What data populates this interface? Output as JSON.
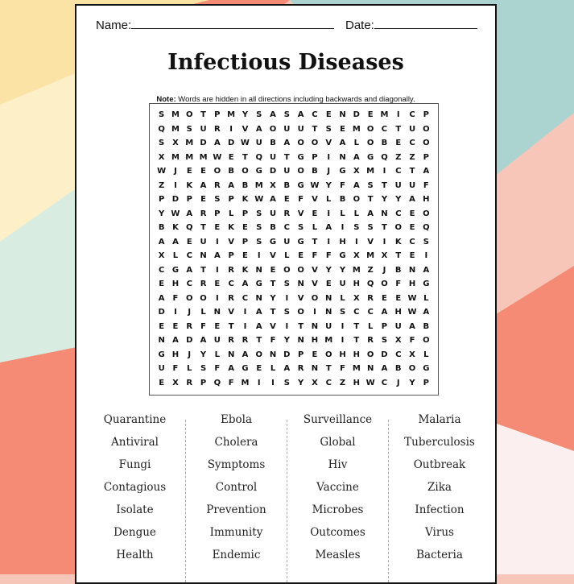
{
  "background_colors": [
    "#fbe3a6",
    "#f58b75",
    "#abd3d0",
    "#f7c6b9",
    "#d8ece2",
    "#fbeff0"
  ],
  "header": {
    "name_label": "Name:",
    "date_label": "Date:"
  },
  "title": "Infectious Diseases",
  "note": {
    "bold": "Note:",
    "text": " Words are hidden in all directions including backwards and diagonally."
  },
  "grid_rows": [
    "SMOTPMYSASACENDEMICP",
    "QMSURIVAOUUTSEMOCTUO",
    "SXMDADWUBAOOVALOBECO",
    "XMMMWETQUTGPINAGQZZP",
    "WJEEOBOGDUOBJGXMICTA",
    "ZIKARABMXBGWYFASTUUF",
    "PDPESPKWAEFVLBOTYYAH",
    "YWARPLPSURVEILLANCEO",
    "BKQTEKESBCSLAISSTOEQ",
    "AAEUIVPSGUGTIHIVIKCS",
    "XLCNAPEIVLEFFGXMXTEI",
    "CGATIRKNEOOVYYMZJBNA",
    "EHCRECAGTSNVEUHQOFHG",
    "AFOOIRCNYIVONLXREEWL",
    "DIJLNVIATSOINSCCAHWA",
    "EERFETIAVITNUITLPUAB",
    "NADAURRTFYNHMITRSXFO",
    "GHJYLNAONDPEOHHODCXL",
    "UFLSFAGELARNTFMNABOG",
    "EXRPQFMIISYXCZHWCJYP"
  ],
  "word_columns": [
    [
      "Quarantine",
      "Antiviral",
      "Fungi",
      "Contagious",
      "Isolate",
      "Dengue",
      "Health"
    ],
    [
      "Ebola",
      "Cholera",
      "Symptoms",
      "Control",
      "Prevention",
      "Immunity",
      "Endemic"
    ],
    [
      "Surveillance",
      "Global",
      "Hiv",
      "Vaccine",
      "Microbes",
      "Outcomes",
      "Measles"
    ],
    [
      "Malaria",
      "Tuberculosis",
      "Outbreak",
      "Zika",
      "Infection",
      "Virus",
      "Bacteria"
    ]
  ]
}
